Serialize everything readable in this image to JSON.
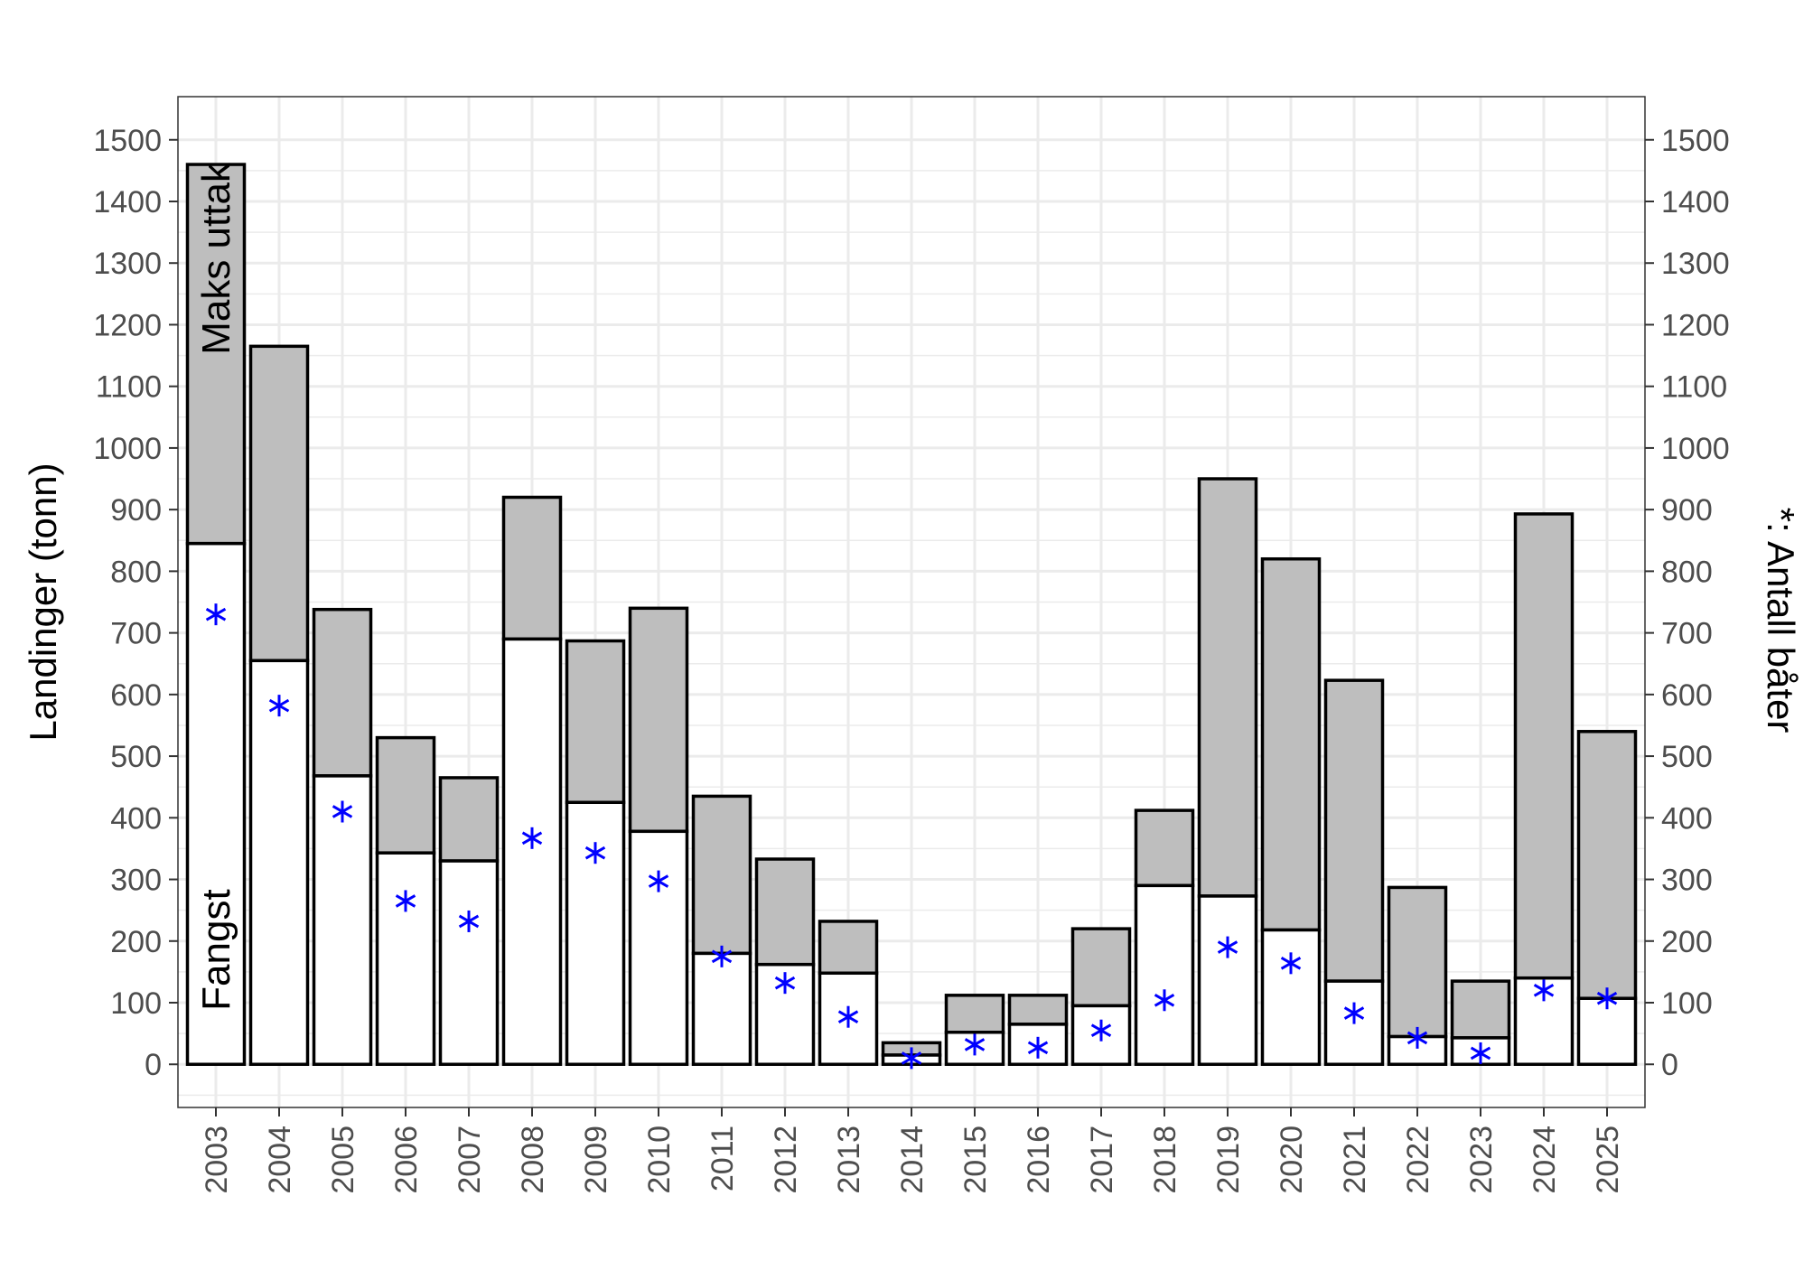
{
  "chart_data": {
    "type": "bar",
    "ylabel": "Landinger (tonn)",
    "ylabel_right": "*: Antall båter",
    "ylim": [
      -70,
      1570
    ],
    "yticks": [
      0,
      100,
      200,
      300,
      400,
      500,
      600,
      700,
      800,
      900,
      1000,
      1100,
      1200,
      1300,
      1400,
      1500
    ],
    "grid": true,
    "annotations": {
      "top_label": "Maks uttak",
      "bottom_label": "Fangst"
    },
    "categories": [
      "2003",
      "2004",
      "2005",
      "2006",
      "2007",
      "2008",
      "2009",
      "2010",
      "2011",
      "2012",
      "2013",
      "2014",
      "2015",
      "2016",
      "2017",
      "2018",
      "2019",
      "2020",
      "2021",
      "2022",
      "2023",
      "2024",
      "2025"
    ],
    "series": [
      {
        "name": "Maks uttak",
        "values": [
          1460,
          1165,
          738,
          530,
          465,
          920,
          687,
          740,
          435,
          333,
          232,
          35,
          112,
          112,
          220,
          412,
          950,
          820,
          623,
          287,
          135,
          893,
          540
        ]
      },
      {
        "name": "Fangst",
        "values": [
          845,
          655,
          468,
          343,
          330,
          690,
          425,
          378,
          180,
          162,
          148,
          15,
          52,
          65,
          95,
          290,
          273,
          218,
          135,
          45,
          43,
          140,
          107
        ]
      },
      {
        "name": "Antall båter",
        "values": [
          730,
          582,
          410,
          265,
          232,
          367,
          343,
          297,
          175,
          132,
          77,
          10,
          32,
          27,
          55,
          104,
          190,
          164,
          83,
          43,
          18,
          120,
          107
        ]
      }
    ],
    "colors": {
      "bar_max": "#bebebe",
      "bar_catch": "#ffffff",
      "outline": "#000000",
      "marker": "#0000ff",
      "grid": "#ebebeb"
    }
  }
}
